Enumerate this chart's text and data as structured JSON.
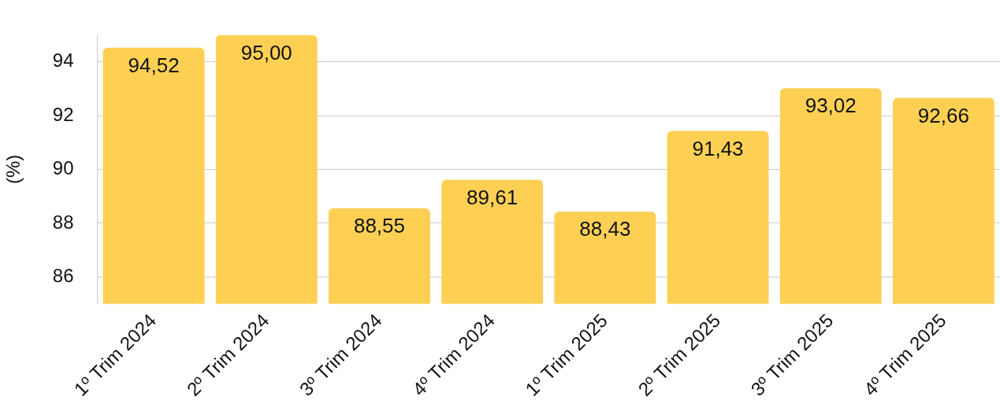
{
  "chart_data": {
    "type": "bar",
    "ylabel": "(%)",
    "categories": [
      "1º Trim 2024",
      "2º Trim 2024",
      "3º Trim 2024",
      "4º Trim 2024",
      "1º Trim 2025",
      "2º Trim 2025",
      "3º Trim 2025",
      "4º Trim 2025"
    ],
    "values": [
      94.52,
      95.0,
      88.55,
      89.61,
      88.43,
      91.43,
      93.02,
      92.66
    ],
    "value_labels": [
      "94,52",
      "95,00",
      "88,55",
      "89,61",
      "88,43",
      "91,43",
      "93,02",
      "92,66"
    ],
    "color": "#fdd054",
    "ylim": [
      85,
      95
    ],
    "yticks": [
      86,
      88,
      90,
      92,
      94
    ],
    "grid": "y",
    "legend": false
  }
}
